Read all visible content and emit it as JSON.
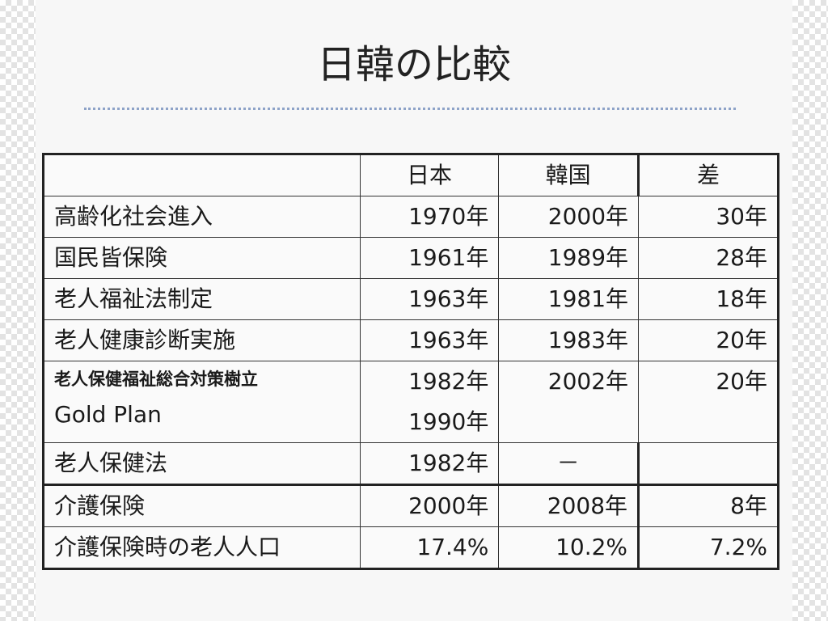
{
  "title": "日韓の比較",
  "table": {
    "headers": [
      "",
      "日本",
      "韓国",
      "差"
    ],
    "rows": [
      {
        "label": "高齢化社会進入",
        "jp": "1970年",
        "kr": "2000年",
        "diff": "30年"
      },
      {
        "label": "国民皆保険",
        "jp": "1961年",
        "kr": "1989年",
        "diff": "28年"
      },
      {
        "label": "老人福祉法制定",
        "jp": "1963年",
        "kr": "1981年",
        "diff": "18年"
      },
      {
        "label": "老人健康診断実施",
        "jp": "1963年",
        "kr": "1983年",
        "diff": "20年"
      },
      {
        "label": "老人保健福祉総合対策樹立",
        "label2": "Gold Plan",
        "jp": "1982年",
        "jp2": "1990年",
        "kr": "2002年",
        "diff": "20年"
      },
      {
        "label": "老人保健法",
        "jp": "1982年",
        "kr": "－",
        "diff": ""
      },
      {
        "label": "介護保険",
        "jp": "2000年",
        "kr": "2008年",
        "diff": "8年"
      },
      {
        "label": "介護保険時の老人人口",
        "jp": "17.4%",
        "kr": "10.2%",
        "diff": "7.2%"
      }
    ]
  }
}
